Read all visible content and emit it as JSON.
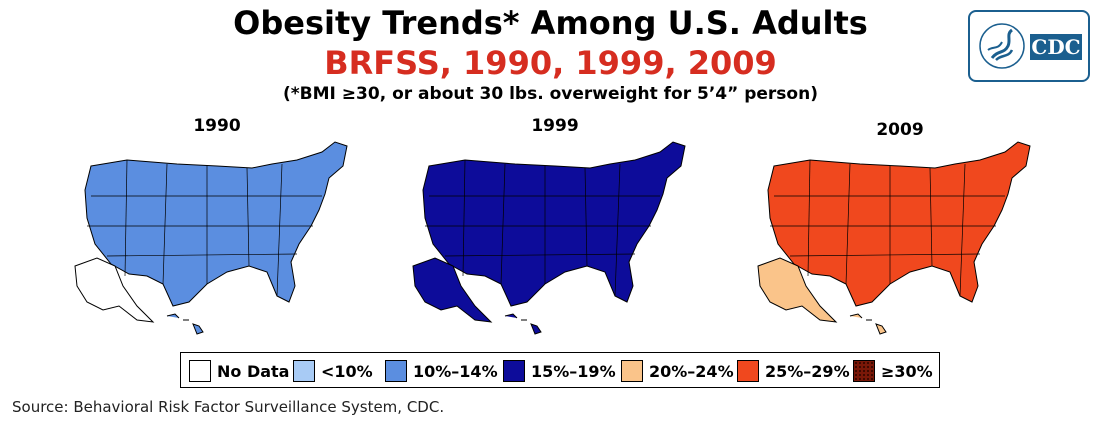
{
  "header": {
    "title": "Obesity Trends* Among U.S. Adults",
    "subtitle": "BRFSS, 1990, 1999, 2009",
    "note": "(*BMI ≥30, or about 30 lbs. overweight for 5’4” person)",
    "subtitle_color": "#d62d20"
  },
  "logo": {
    "text": "CDC",
    "seal_text": "DEPARTMENT OF HEALTH & HUMAN SERVICES USA"
  },
  "categories": [
    {
      "key": "none",
      "label": "No Data",
      "color": "#ffffff"
    },
    {
      "key": "c1",
      "label": "<10%",
      "color": "#a8cbf5"
    },
    {
      "key": "c2",
      "label": "10%–14%",
      "color": "#5b8ee0"
    },
    {
      "key": "c3",
      "label": "15%–19%",
      "color": "#0d0c9a"
    },
    {
      "key": "c4",
      "label": "20%–24%",
      "color": "#fac48a"
    },
    {
      "key": "c5",
      "label": "25%–29%",
      "color": "#f0481e"
    },
    {
      "key": "c6",
      "label": "≥30%",
      "color": "#7a1808"
    }
  ],
  "maps": [
    {
      "year": "1990",
      "dominant": "c2",
      "alaska": "none",
      "hawaii": "c2"
    },
    {
      "year": "1999",
      "dominant": "c3",
      "alaska": "c3",
      "hawaii": "c3"
    },
    {
      "year": "2009",
      "dominant": "c5",
      "alaska": "c4",
      "hawaii": "c4"
    }
  ],
  "source": "Source: Behavioral Risk Factor Surveillance System, CDC."
}
